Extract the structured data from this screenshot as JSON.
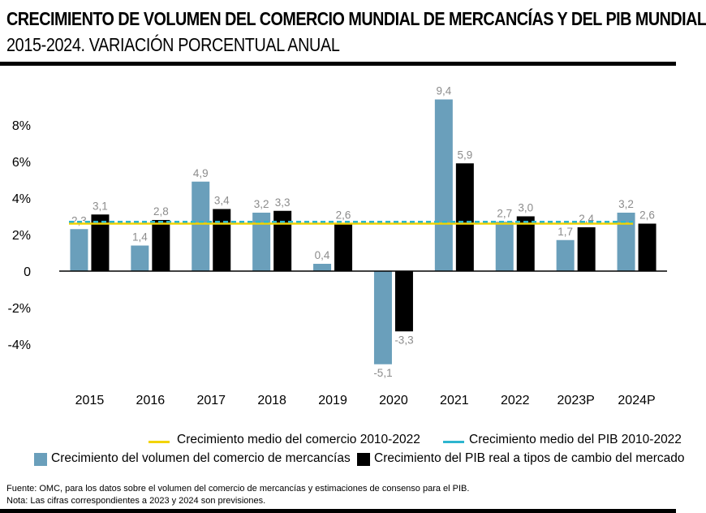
{
  "header": {
    "title": "CRECIMIENTO DE VOLUMEN DEL COMERCIO MUNDIAL DE MERCANCÍAS Y DEL PIB MUNDIAL",
    "subtitle": "2015-2024. VARIACIÓN PORCENTUAL ANUAL"
  },
  "chart_data": {
    "type": "bar",
    "categories": [
      "2015",
      "2016",
      "2017",
      "2018",
      "2019",
      "2020",
      "2021",
      "2022",
      "2023P",
      "2024P"
    ],
    "series": [
      {
        "name": "Crecimiento del volumen del comercio de mercancías",
        "color": "#6a9fbb",
        "values": [
          2.3,
          1.4,
          4.9,
          3.2,
          0.4,
          -5.1,
          9.4,
          2.7,
          1.7,
          3.2
        ],
        "labels": [
          "2,3",
          "1,4",
          "4,9",
          "3,2",
          "0,4",
          "-5,1",
          "9,4",
          "2,7",
          "1,7",
          "3,2"
        ]
      },
      {
        "name": "Crecimiento del PIB real a tipos de cambio del mercado",
        "color": "#000000",
        "values": [
          3.1,
          2.8,
          3.4,
          3.3,
          2.6,
          -3.3,
          5.9,
          3.0,
          2.4,
          2.6
        ],
        "labels": [
          "3,1",
          "2,8",
          "3,4",
          "3,3",
          "2,6",
          "-3,3",
          "5,9",
          "3,0",
          "2,4",
          "2,6"
        ]
      }
    ],
    "reference_lines": [
      {
        "name": "Crecimiento medio del comercio 2010-2022",
        "value": 2.6,
        "color": "#f2d400"
      },
      {
        "name": "Crecimiento medio del PIB 2010-2022",
        "value": 2.7,
        "color": "#2db5cf"
      }
    ],
    "yticks": [
      -4,
      -2,
      0,
      2,
      4,
      6,
      8
    ],
    "ytick_labels": [
      "-4%",
      "-2%",
      "0",
      "2%",
      "4%",
      "6%",
      "8%"
    ],
    "ylim": [
      -6,
      10.5
    ],
    "xlabel": "",
    "ylabel": "",
    "label_color": "#8c8c8c"
  },
  "legend": {
    "trade_avg": "Crecimiento medio del comercio 2010-2022",
    "gdp_avg": "Crecimiento medio del PIB 2010-2022",
    "trade_volume": "Crecimiento del volumen del comercio de mercancías",
    "gdp_real": "Crecimiento del PIB real a tipos de cambio del mercado"
  },
  "footnotes": {
    "source": "Fuente: OMC, para los datos sobre el volumen del comercio de mercancías y estimaciones de consenso para el PIB.",
    "note": "Nota: Las cifras correspondientes a 2023 y 2024 son previsiones."
  }
}
